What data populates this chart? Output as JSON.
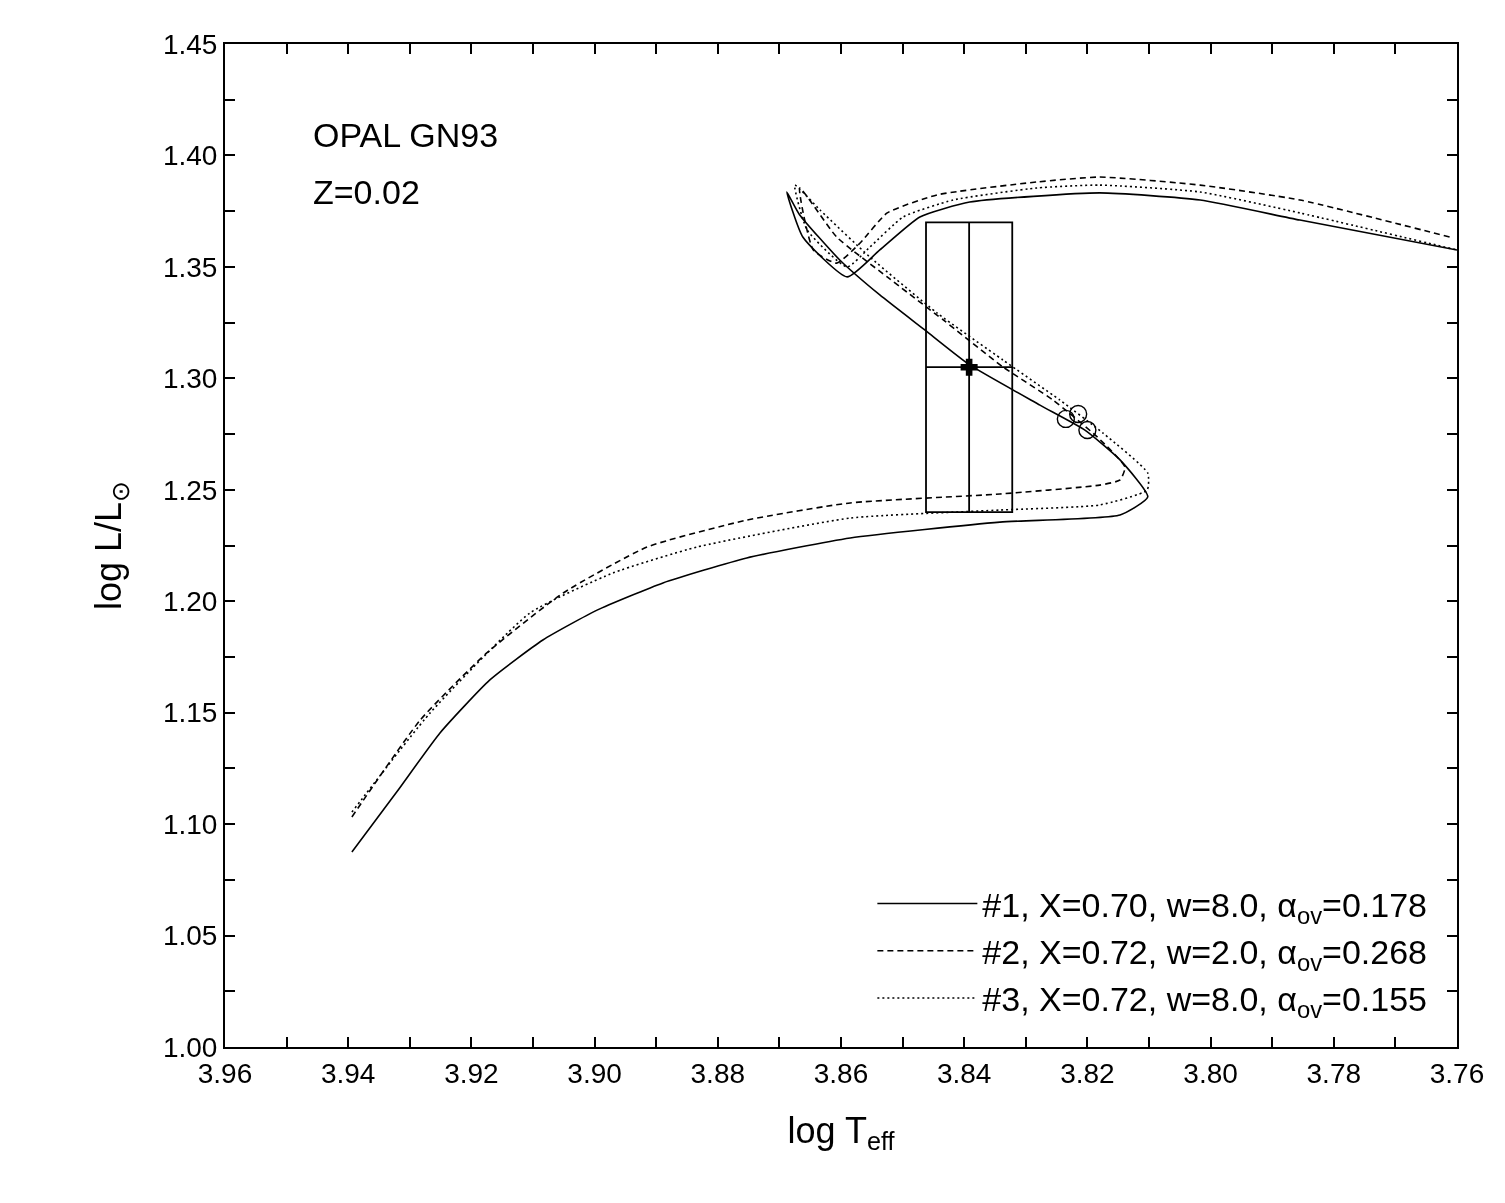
{
  "chart_data": {
    "type": "line",
    "xlabel": "log T$_{eff}$",
    "ylabel": "log L/L$_{⊙}$",
    "annotations": [
      "OPAL GN93",
      "Z=0.02"
    ],
    "xlim": [
      3.96,
      3.76
    ],
    "xticks": [
      {
        "value": 3.96,
        "label": "3.96"
      },
      {
        "value": 3.95,
        "label": null
      },
      {
        "value": 3.94,
        "label": "3.94"
      },
      {
        "value": 3.93,
        "label": null
      },
      {
        "value": 3.92,
        "label": "3.92"
      },
      {
        "value": 3.91,
        "label": null
      },
      {
        "value": 3.9,
        "label": "3.90"
      },
      {
        "value": 3.89,
        "label": null
      },
      {
        "value": 3.88,
        "label": "3.88"
      },
      {
        "value": 3.87,
        "label": null
      },
      {
        "value": 3.86,
        "label": "3.86"
      },
      {
        "value": 3.85,
        "label": null
      },
      {
        "value": 3.84,
        "label": "3.84"
      },
      {
        "value": 3.83,
        "label": null
      },
      {
        "value": 3.82,
        "label": "3.82"
      },
      {
        "value": 3.81,
        "label": null
      },
      {
        "value": 3.8,
        "label": "3.80"
      },
      {
        "value": 3.79,
        "label": null
      },
      {
        "value": 3.78,
        "label": "3.78"
      },
      {
        "value": 3.77,
        "label": null
      },
      {
        "value": 3.76,
        "label": "3.76"
      }
    ],
    "ylim": [
      1.0,
      1.45
    ],
    "yticks": [
      {
        "value": 1.0,
        "label": "1.00"
      },
      {
        "value": 1.025,
        "label": null
      },
      1.05,
      {
        "value": 1.075,
        "label": null
      },
      {
        "value": 1.1,
        "label": "1.10"
      },
      {
        "value": 1.125,
        "label": null
      },
      1.15,
      {
        "value": 1.175,
        "label": null
      },
      {
        "value": 1.2,
        "label": "1.20"
      },
      {
        "value": 1.225,
        "label": null
      },
      1.25,
      {
        "value": 1.275,
        "label": null
      },
      {
        "value": 1.3,
        "label": "1.30"
      },
      {
        "value": 1.325,
        "label": null
      },
      1.35,
      {
        "value": 1.375,
        "label": null
      },
      {
        "value": 1.4,
        "label": "1.40"
      },
      {
        "value": 1.425,
        "label": null
      },
      1.45
    ],
    "grid": false,
    "legend": "bottom right",
    "series": [
      {
        "name": "#1, X=0.70, w=8.0, α$_{ov}$=0.178",
        "color": "#000000",
        "line_style": "solid",
        "marker": "none",
        "x": [
          3.9394,
          3.9321,
          3.9251,
          3.917,
          3.9084,
          3.8996,
          3.8889,
          3.8753,
          3.8585,
          3.8342,
          3.8147,
          3.8102,
          3.8147,
          3.8204,
          3.8277,
          3.8391,
          3.8464,
          3.8537,
          3.8602,
          3.8667,
          3.8688,
          3.8662,
          3.859,
          3.8537,
          3.8472,
          3.8391,
          3.818,
          3.8017,
          3.7855,
          3.76
        ],
        "values": [
          1.0875,
          1.1145,
          1.1409,
          1.1647,
          1.1826,
          1.196,
          1.2082,
          1.2194,
          1.2284,
          1.2355,
          1.2387,
          1.2468,
          1.2634,
          1.2768,
          1.288,
          1.306,
          1.3217,
          1.3374,
          1.3531,
          1.3733,
          1.3836,
          1.3634,
          1.3455,
          1.3576,
          1.3724,
          1.3791,
          1.3832,
          1.38,
          1.371,
          1.3576
        ]
      },
      {
        "name": "#2, X=0.72, w=2.0, α$_{ov}$=0.268",
        "color": "#000000",
        "line_style": "dashed",
        "marker": "none",
        "x": [
          3.9394,
          3.9283,
          3.9175,
          3.9051,
          3.8915,
          3.8753,
          3.8585,
          3.8342,
          3.818,
          3.8147,
          3.8139,
          3.8184,
          3.8256,
          3.8337,
          3.8434,
          3.8525,
          3.8607,
          3.8667,
          3.8645,
          3.8607,
          3.8569,
          3.8525,
          3.8444,
          3.8282,
          3.818,
          3.8017,
          3.7855,
          3.7612
        ],
        "values": [
          1.1032,
          1.1467,
          1.1768,
          1.2037,
          1.2243,
          1.2364,
          1.2441,
          1.2481,
          1.2521,
          1.2544,
          1.2602,
          1.2737,
          1.2903,
          1.3051,
          1.3262,
          1.3455,
          1.3634,
          1.3854,
          1.3576,
          1.3517,
          1.3607,
          1.3742,
          1.3823,
          1.3881,
          1.3903,
          1.3867,
          1.38,
          1.3634
        ]
      },
      {
        "name": "#3, X=0.72, w=8.0, α$_{ov}$=0.155",
        "color": "#000000",
        "line_style": "dotted",
        "marker": "none",
        "x": [
          3.9394,
          3.9267,
          3.9105,
          3.897,
          3.8834,
          3.8585,
          3.8342,
          3.818,
          3.8103,
          3.8102,
          3.8175,
          3.8245,
          3.8337,
          3.8444,
          3.8553,
          3.8634,
          3.8675,
          3.8655,
          3.859,
          3.8553,
          3.8499,
          3.8418,
          3.8282,
          3.818,
          3.8017,
          3.7855,
          3.76
        ],
        "values": [
          1.1054,
          1.1499,
          1.1947,
          1.2127,
          1.2243,
          1.2373,
          1.2409,
          1.2432,
          1.2499,
          1.2575,
          1.2755,
          1.2903,
          1.3082,
          1.3293,
          1.3544,
          1.3755,
          1.3867,
          1.3666,
          1.35,
          1.3589,
          1.3724,
          1.38,
          1.3854,
          1.3867,
          1.3836,
          1.3742,
          1.3576
        ]
      },
      {
        "type": "scatter",
        "color": "#000000",
        "marker": "cross",
        "x": [
          3.8392
        ],
        "values": [
          1.305
        ],
        "xerrors": [
          0.007
        ],
        "errors": [
          0.065
        ]
      },
      {
        "type": "scatter",
        "color": "#000000",
        "marker": "circle",
        "x": [
          3.8235,
          3.8215,
          3.82
        ],
        "values": [
          1.2818,
          1.284,
          1.2768
        ]
      }
    ]
  }
}
